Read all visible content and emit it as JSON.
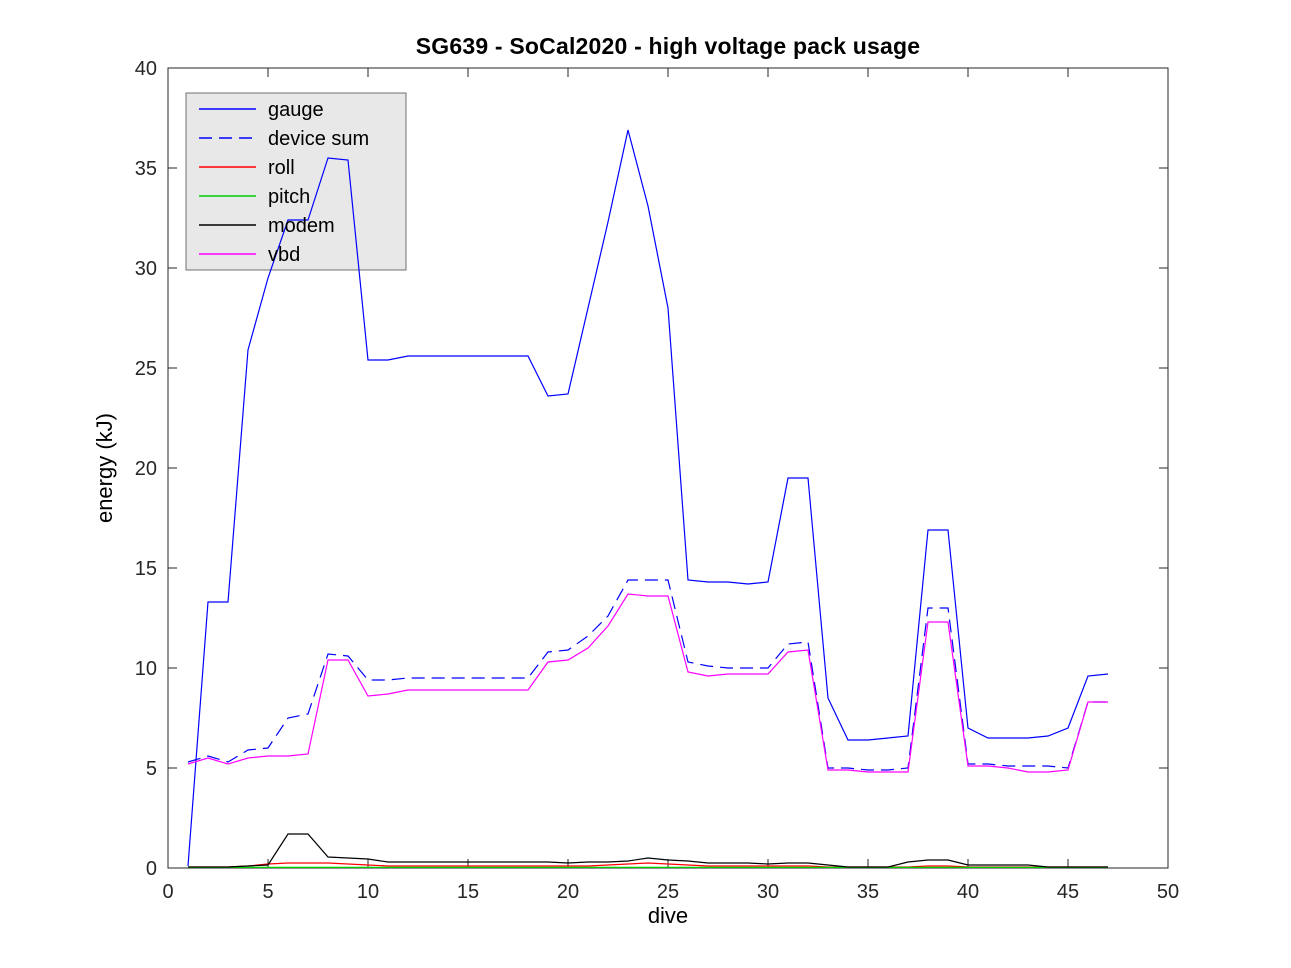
{
  "chart_data": {
    "type": "line",
    "title": "SG639 - SoCal2020 - high voltage pack usage",
    "xlabel": "dive",
    "ylabel": "energy (kJ)",
    "xlim": [
      0,
      50
    ],
    "ylim": [
      0,
      40
    ],
    "xticks": [
      0,
      5,
      10,
      15,
      20,
      25,
      30,
      35,
      40,
      45,
      50
    ],
    "yticks": [
      0,
      5,
      10,
      15,
      20,
      25,
      30,
      35,
      40
    ],
    "grid": false,
    "legend": {
      "position": "upper-left",
      "bg_color": "#e8e8e8",
      "border_color": "#707070"
    },
    "axis_color": "#262626",
    "x": [
      1,
      2,
      3,
      4,
      5,
      6,
      7,
      8,
      9,
      10,
      11,
      12,
      13,
      14,
      15,
      16,
      17,
      18,
      19,
      20,
      21,
      22,
      23,
      24,
      25,
      26,
      27,
      28,
      29,
      30,
      31,
      32,
      33,
      34,
      35,
      36,
      37,
      38,
      39,
      40,
      41,
      42,
      43,
      44,
      45,
      46,
      47
    ],
    "series": [
      {
        "name": "gauge",
        "color": "#0000ff",
        "line_style": "solid",
        "values": [
          0.1,
          13.3,
          13.3,
          25.9,
          29.5,
          32.4,
          32.4,
          35.5,
          35.4,
          25.4,
          25.4,
          25.6,
          25.6,
          25.6,
          25.6,
          25.6,
          25.6,
          25.6,
          23.6,
          23.7,
          28.0,
          32.3,
          36.9,
          33.1,
          28.0,
          14.4,
          14.3,
          14.3,
          14.2,
          14.3,
          19.5,
          19.5,
          8.5,
          6.4,
          6.4,
          6.5,
          6.6,
          16.9,
          16.9,
          7.0,
          6.5,
          6.5,
          6.5,
          6.6,
          7.0,
          9.6,
          9.7
        ]
      },
      {
        "name": "device sum",
        "color": "#0000ff",
        "line_style": "dashed",
        "values": [
          5.3,
          5.6,
          5.3,
          5.9,
          6.0,
          7.5,
          7.7,
          10.7,
          10.6,
          9.4,
          9.4,
          9.5,
          9.5,
          9.5,
          9.5,
          9.5,
          9.5,
          9.5,
          10.8,
          10.9,
          11.6,
          12.6,
          14.4,
          14.4,
          14.4,
          10.3,
          10.1,
          10.0,
          10.0,
          10.0,
          11.2,
          11.3,
          5.0,
          5.0,
          4.9,
          4.9,
          5.0,
          13.0,
          13.0,
          5.2,
          5.2,
          5.1,
          5.1,
          5.1,
          5.0,
          8.3,
          8.3
        ]
      },
      {
        "name": "roll",
        "color": "#ff0000",
        "line_style": "solid",
        "values": [
          0.05,
          0.05,
          0.05,
          0.1,
          0.2,
          0.25,
          0.25,
          0.25,
          0.2,
          0.15,
          0.1,
          0.1,
          0.1,
          0.1,
          0.1,
          0.1,
          0.1,
          0.1,
          0.1,
          0.1,
          0.1,
          0.15,
          0.2,
          0.25,
          0.2,
          0.15,
          0.1,
          0.1,
          0.1,
          0.1,
          0.1,
          0.1,
          0.05,
          0.05,
          0.05,
          0.05,
          0.05,
          0.1,
          0.1,
          0.05,
          0.05,
          0.05,
          0.05,
          0.05,
          0.05,
          0.05,
          0.05
        ]
      },
      {
        "name": "pitch",
        "color": "#00cc00",
        "line_style": "solid",
        "values": [
          0.03,
          0.03,
          0.03,
          0.03,
          0.03,
          0.03,
          0.03,
          0.03,
          0.03,
          0.03,
          0.03,
          0.03,
          0.03,
          0.03,
          0.03,
          0.03,
          0.03,
          0.03,
          0.03,
          0.03,
          0.03,
          0.03,
          0.03,
          0.03,
          0.03,
          0.03,
          0.03,
          0.03,
          0.03,
          0.03,
          0.03,
          0.03,
          0.03,
          0.03,
          0.03,
          0.03,
          0.03,
          0.03,
          0.03,
          0.03,
          0.03,
          0.03,
          0.03,
          0.03,
          0.03,
          0.03,
          0.03
        ]
      },
      {
        "name": "modem",
        "color": "#000000",
        "line_style": "solid",
        "values": [
          0.05,
          0.05,
          0.05,
          0.1,
          0.15,
          1.7,
          1.7,
          0.55,
          0.5,
          0.45,
          0.3,
          0.3,
          0.3,
          0.3,
          0.3,
          0.3,
          0.3,
          0.3,
          0.3,
          0.25,
          0.3,
          0.3,
          0.35,
          0.5,
          0.4,
          0.35,
          0.25,
          0.25,
          0.25,
          0.2,
          0.25,
          0.25,
          0.15,
          0.05,
          0.05,
          0.05,
          0.3,
          0.4,
          0.4,
          0.15,
          0.15,
          0.15,
          0.15,
          0.05,
          0.05,
          0.05,
          0.05
        ]
      },
      {
        "name": "vbd",
        "color": "#ff00ff",
        "line_style": "solid",
        "values": [
          5.2,
          5.5,
          5.2,
          5.5,
          5.6,
          5.6,
          5.7,
          10.4,
          10.4,
          8.6,
          8.7,
          8.9,
          8.9,
          8.9,
          8.9,
          8.9,
          8.9,
          8.9,
          10.3,
          10.4,
          11.0,
          12.1,
          13.7,
          13.6,
          13.6,
          9.8,
          9.6,
          9.7,
          9.7,
          9.7,
          10.8,
          10.9,
          4.9,
          4.9,
          4.8,
          4.8,
          4.8,
          12.3,
          12.3,
          5.1,
          5.1,
          5.0,
          4.8,
          4.8,
          4.9,
          8.3,
          8.3
        ]
      }
    ]
  }
}
